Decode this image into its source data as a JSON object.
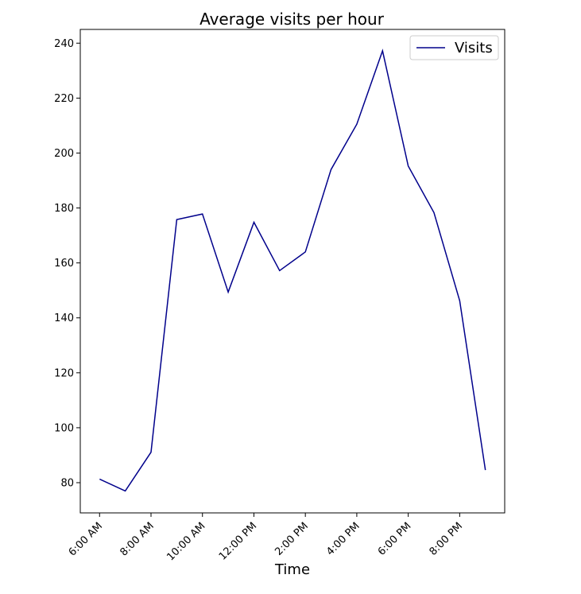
{
  "chart_data": {
    "type": "line",
    "title": "Average visits per hour",
    "xlabel": "Time",
    "ylabel": "",
    "x": [
      6,
      7,
      8,
      9,
      10,
      11,
      12,
      13,
      14,
      15,
      16,
      17,
      18,
      19,
      20,
      21
    ],
    "x_ticks": [
      {
        "value": 6,
        "label": "6:00 AM"
      },
      {
        "value": 8,
        "label": "8:00 AM"
      },
      {
        "value": 10,
        "label": "10:00 AM"
      },
      {
        "value": 12,
        "label": "12:00 PM"
      },
      {
        "value": 14,
        "label": "2:00 PM"
      },
      {
        "value": 16,
        "label": "4:00 PM"
      },
      {
        "value": 18,
        "label": "6:00 PM"
      },
      {
        "value": 20,
        "label": "8:00 PM"
      }
    ],
    "y_ticks": [
      80,
      100,
      120,
      140,
      160,
      180,
      200,
      220,
      240
    ],
    "xlim": [
      5.25,
      21.75
    ],
    "ylim": [
      69,
      245
    ],
    "series": [
      {
        "name": "Visits",
        "color": "#00008b",
        "values": [
          81.3,
          77.0,
          91.1,
          175.8,
          177.8,
          149.4,
          174.8,
          157.2,
          164.0,
          194.0,
          210.5,
          237.2,
          195.3,
          178.3,
          146.2,
          84.6
        ]
      }
    ],
    "grid": false,
    "legend": "top-right"
  }
}
